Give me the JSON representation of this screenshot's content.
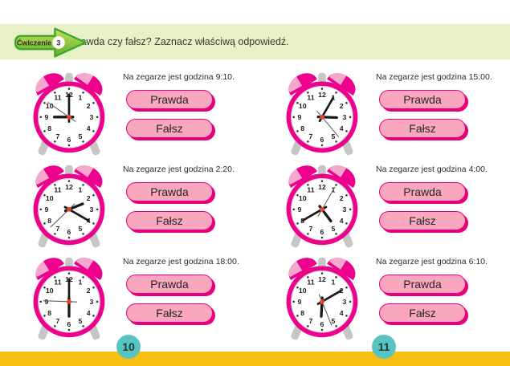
{
  "header": {
    "badge_label": "Ćwiczenie",
    "badge_number": "3",
    "instruction": "Prawda czy fałsz? Zaznacz właściwą odpowiedź."
  },
  "answer_buttons": {
    "true_label": "Prawda",
    "false_label": "Fałsz"
  },
  "clock_face_numbers": [
    "1",
    "2",
    "3",
    "4",
    "5",
    "6",
    "7",
    "8",
    "9",
    "10",
    "11",
    "12"
  ],
  "exercises": [
    {
      "statement": "Na zegarze jest godzina 9:10.",
      "clock": {
        "displayed_time": "9:00",
        "hour_angle": 270,
        "minute_angle": 0,
        "second_angle": 305
      }
    },
    {
      "statement": "Na zegarze jest godzina 15:00.",
      "clock": {
        "displayed_time": "3:05",
        "hour_angle": 92,
        "minute_angle": 30,
        "second_angle": 140
      }
    },
    {
      "statement": "Na zegarze jest godzina 2:20.",
      "clock": {
        "displayed_time": "2:20",
        "hour_angle": 68,
        "minute_angle": 120,
        "second_angle": 226
      }
    },
    {
      "statement": "Na zegarze jest godzina 4:00.",
      "clock": {
        "displayed_time": "4:40",
        "hour_angle": 143,
        "minute_angle": 240,
        "second_angle": 30
      }
    },
    {
      "statement": "Na zegarze jest godzina 18:00.",
      "clock": {
        "displayed_time": "6:00",
        "hour_angle": 180,
        "minute_angle": 0,
        "second_angle": 272
      }
    },
    {
      "statement": "Na zegarze jest godzina 6:10.",
      "clock": {
        "displayed_time": "6:10",
        "hour_angle": 183,
        "minute_angle": 60,
        "second_angle": 158
      }
    }
  ],
  "footer": {
    "left_page_number": "10",
    "right_page_number": "11"
  },
  "colors": {
    "header_band": "#e8f0c6",
    "badge_border": "#3aa62b",
    "badge_fill_top": "#c9e060",
    "badge_fill_bottom": "#5fae27",
    "clock_body": "#ec008c",
    "bell_highlight": "#f5a8ce",
    "metal_gray": "#c6c6c6",
    "face_ring": "#dedede",
    "button_fill": "#f8a7bf",
    "button_border": "#e6007e",
    "statement_text": "#2b2b2b",
    "hand_color": "#1a1a1a",
    "second_hand": "#5f5f5f",
    "center_dot": "#ee4129",
    "page_circle": "#57c4c2",
    "page_number_text": "#203c3c",
    "footer_bar": "#f8c013"
  }
}
